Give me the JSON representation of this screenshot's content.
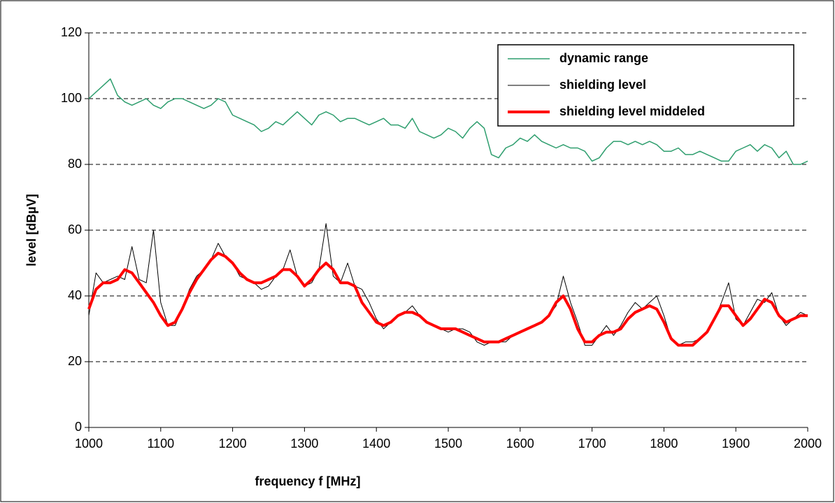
{
  "chart_data": {
    "type": "line",
    "xlabel": "frequency f [MHz]",
    "ylabel": "level [dBµV]",
    "x": [
      1000,
      1010,
      1020,
      1030,
      1040,
      1050,
      1060,
      1070,
      1080,
      1090,
      1100,
      1110,
      1120,
      1130,
      1140,
      1150,
      1160,
      1170,
      1180,
      1190,
      1200,
      1210,
      1220,
      1230,
      1240,
      1250,
      1260,
      1270,
      1280,
      1290,
      1300,
      1310,
      1320,
      1330,
      1340,
      1350,
      1360,
      1370,
      1380,
      1390,
      1400,
      1410,
      1420,
      1430,
      1440,
      1450,
      1460,
      1470,
      1480,
      1490,
      1500,
      1510,
      1520,
      1530,
      1540,
      1550,
      1560,
      1570,
      1580,
      1590,
      1600,
      1610,
      1620,
      1630,
      1640,
      1650,
      1660,
      1670,
      1680,
      1690,
      1700,
      1710,
      1720,
      1730,
      1740,
      1750,
      1760,
      1770,
      1780,
      1790,
      1800,
      1810,
      1820,
      1830,
      1840,
      1850,
      1860,
      1870,
      1880,
      1890,
      1900,
      1910,
      1920,
      1930,
      1940,
      1950,
      1960,
      1970,
      1980,
      1990,
      2000
    ],
    "series": [
      {
        "name": "dynamic range",
        "color": "#2e9e6e",
        "width": 1.5,
        "values": [
          100,
          102,
          104,
          106,
          101,
          99,
          98,
          99,
          100,
          98,
          97,
          99,
          100,
          100,
          99,
          98,
          97,
          98,
          100,
          99,
          95,
          94,
          93,
          92,
          90,
          91,
          93,
          92,
          94,
          96,
          94,
          92,
          95,
          96,
          95,
          93,
          94,
          94,
          93,
          92,
          93,
          94,
          92,
          92,
          91,
          94,
          90,
          89,
          88,
          89,
          91,
          90,
          88,
          91,
          93,
          91,
          83,
          82,
          85,
          86,
          88,
          87,
          89,
          87,
          86,
          85,
          86,
          85,
          85,
          84,
          81,
          82,
          85,
          87,
          87,
          86,
          87,
          86,
          87,
          86,
          84,
          84,
          85,
          83,
          83,
          84,
          83,
          82,
          81,
          81,
          84,
          85,
          86,
          84,
          86,
          85,
          82,
          84,
          80,
          80,
          81
        ]
      },
      {
        "name": "shielding level",
        "color": "#000000",
        "width": 1,
        "values": [
          34,
          47,
          44,
          45,
          46,
          45,
          55,
          45,
          44,
          60,
          38,
          31,
          31,
          36,
          42,
          46,
          48,
          51,
          56,
          52,
          50,
          46,
          45,
          44,
          42,
          43,
          46,
          48,
          54,
          46,
          43,
          44,
          48,
          62,
          46,
          44,
          50,
          43,
          42,
          38,
          33,
          30,
          32,
          34,
          35,
          37,
          34,
          32,
          31,
          30,
          29,
          30,
          30,
          29,
          26,
          25,
          26,
          26,
          26,
          28,
          29,
          30,
          31,
          32,
          34,
          37,
          46,
          38,
          32,
          25,
          25,
          28,
          31,
          28,
          31,
          35,
          38,
          36,
          38,
          40,
          34,
          27,
          25,
          26,
          26,
          27,
          29,
          33,
          38,
          44,
          33,
          31,
          35,
          39,
          38,
          41,
          34,
          31,
          33,
          35,
          34
        ]
      },
      {
        "name": "shielding level middeled",
        "color": "#ff0000",
        "width": 4,
        "values": [
          36,
          42,
          44,
          44,
          45,
          48,
          47,
          44,
          41,
          38,
          34,
          31,
          32,
          36,
          41,
          45,
          48,
          51,
          53,
          52,
          50,
          47,
          45,
          44,
          44,
          45,
          46,
          48,
          48,
          46,
          43,
          45,
          48,
          50,
          48,
          44,
          44,
          43,
          38,
          35,
          32,
          31,
          32,
          34,
          35,
          35,
          34,
          32,
          31,
          30,
          30,
          30,
          29,
          28,
          27,
          26,
          26,
          26,
          27,
          28,
          29,
          30,
          31,
          32,
          34,
          38,
          40,
          36,
          30,
          26,
          26,
          28,
          29,
          29,
          30,
          33,
          35,
          36,
          37,
          36,
          32,
          27,
          25,
          25,
          25,
          27,
          29,
          33,
          37,
          37,
          34,
          31,
          33,
          36,
          39,
          38,
          34,
          32,
          33,
          34,
          34
        ]
      }
    ],
    "xlim": [
      1000,
      2000
    ],
    "xticks": [
      1000,
      1100,
      1200,
      1300,
      1400,
      1500,
      1600,
      1700,
      1800,
      1900,
      2000
    ],
    "ylim": [
      0,
      120
    ],
    "yticks": [
      0,
      20,
      40,
      60,
      80,
      100,
      120
    ],
    "grid": true,
    "legend": "upper right"
  }
}
